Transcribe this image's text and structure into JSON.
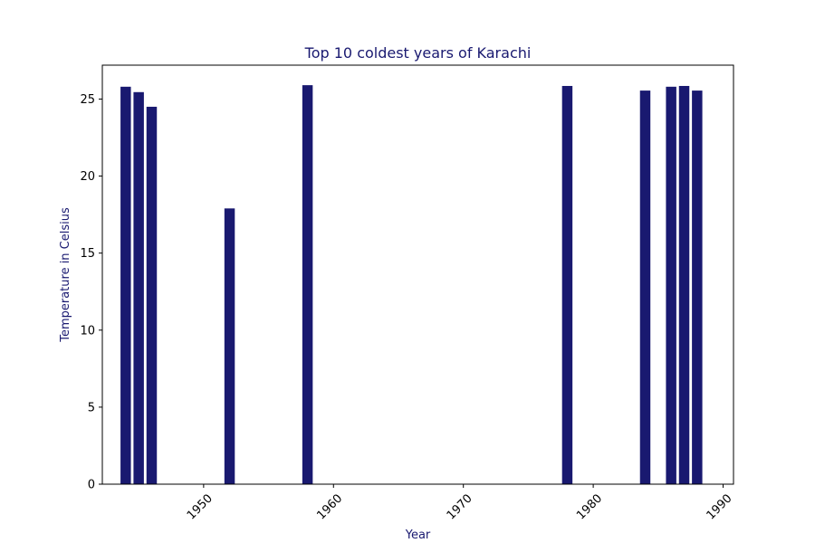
{
  "chart_data": {
    "type": "bar",
    "title": "Top 10 coldest years of Karachi",
    "xlabel": "Year",
    "ylabel": "Temperature in Celsius",
    "x": [
      1944,
      1945,
      1946,
      1952,
      1958,
      1978,
      1984,
      1986,
      1987,
      1988
    ],
    "values": [
      25.8,
      25.45,
      24.5,
      17.9,
      25.9,
      25.85,
      25.55,
      25.8,
      25.85,
      25.55
    ],
    "xlim": [
      1942.2,
      1990.8
    ],
    "ylim": [
      0,
      27.2
    ],
    "xticks": [
      1950,
      1960,
      1970,
      1980,
      1990
    ],
    "yticks": [
      0,
      5,
      10,
      15,
      20,
      25
    ],
    "xtick_rotation": 45,
    "grid": false,
    "legend": "none",
    "colors": {
      "bar": "#191970",
      "title": "#191970",
      "axis_label": "#191970",
      "axes": "#000000",
      "background": "#ffffff"
    }
  }
}
